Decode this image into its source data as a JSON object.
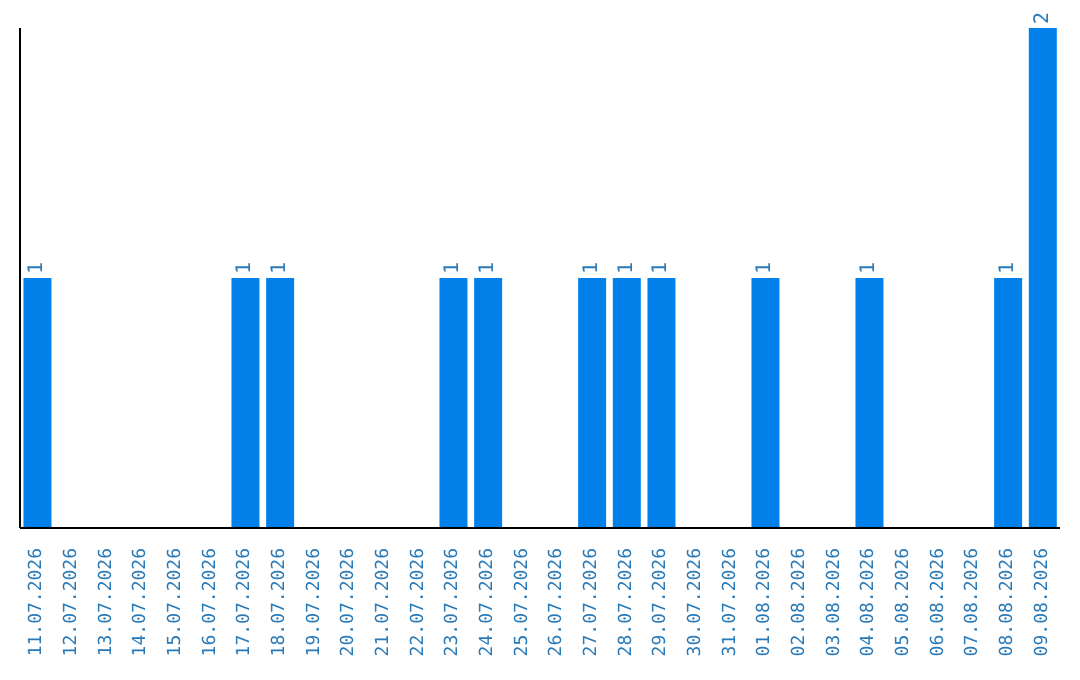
{
  "chart_data": {
    "type": "bar",
    "categories": [
      "11.07.2026",
      "12.07.2026",
      "13.07.2026",
      "14.07.2026",
      "15.07.2026",
      "16.07.2026",
      "17.07.2026",
      "18.07.2026",
      "19.07.2026",
      "20.07.2026",
      "21.07.2026",
      "22.07.2026",
      "23.07.2026",
      "24.07.2026",
      "25.07.2026",
      "26.07.2026",
      "27.07.2026",
      "28.07.2026",
      "29.07.2026",
      "30.07.2026",
      "31.07.2026",
      "01.08.2026",
      "02.08.2026",
      "03.08.2026",
      "04.08.2026",
      "05.08.2026",
      "06.08.2026",
      "07.08.2026",
      "08.08.2026",
      "09.08.2026"
    ],
    "values": [
      1,
      0,
      0,
      0,
      0,
      0,
      1,
      1,
      0,
      0,
      0,
      0,
      1,
      1,
      0,
      0,
      1,
      1,
      1,
      0,
      0,
      1,
      0,
      0,
      1,
      0,
      0,
      0,
      1,
      2
    ],
    "value_labels": [
      "1",
      null,
      null,
      null,
      null,
      null,
      "1",
      "1",
      null,
      null,
      null,
      null,
      "1",
      "1",
      null,
      null,
      "1",
      "1",
      "1",
      null,
      null,
      "1",
      null,
      null,
      "1",
      null,
      null,
      null,
      "1",
      "2"
    ],
    "color": "#0080e8",
    "grid": false,
    "legend": false
  }
}
